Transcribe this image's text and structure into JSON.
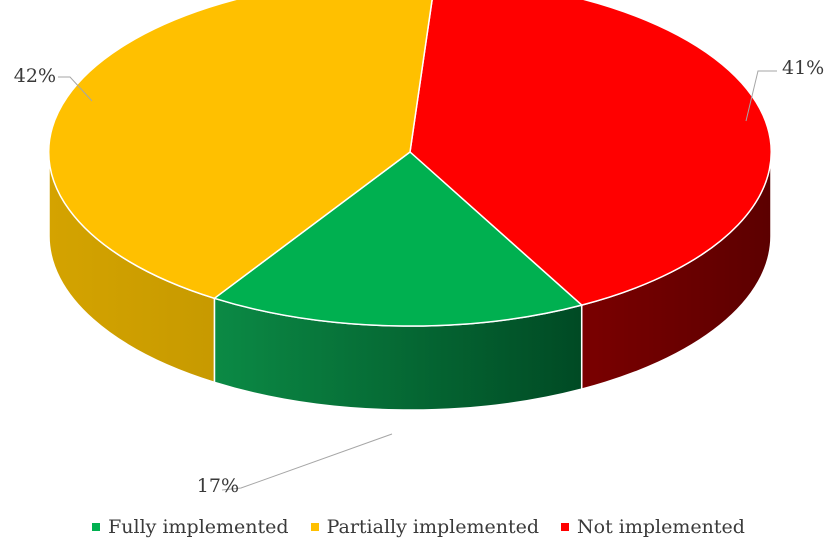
{
  "chart_data": {
    "type": "pie",
    "title": "",
    "categories": [
      "Fully implemented",
      "Partially implemented",
      "Not implemented"
    ],
    "values": [
      17,
      42,
      41
    ],
    "labels": [
      "17%",
      "42%",
      "41%"
    ],
    "colors": [
      "#00B050",
      "#FFC000",
      "#FF0000"
    ],
    "three_d": true,
    "legend_position": "bottom"
  }
}
